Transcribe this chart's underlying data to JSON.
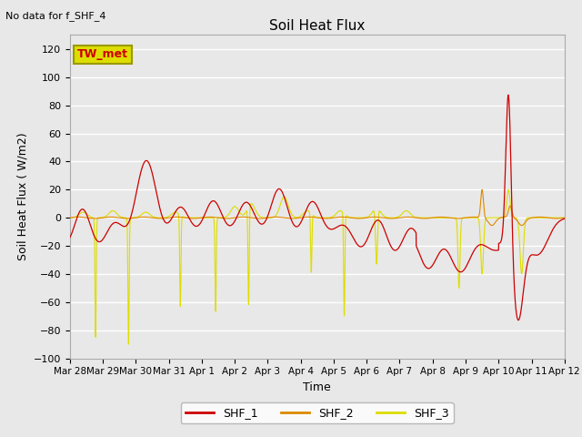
{
  "title": "Soil Heat Flux",
  "subtitle": "No data for f_SHF_4",
  "xlabel": "Time",
  "ylabel": "Soil Heat Flux ( W/m2)",
  "ylim": [
    -100,
    130
  ],
  "yticks": [
    -100,
    -80,
    -60,
    -40,
    -20,
    0,
    20,
    40,
    60,
    80,
    100,
    120
  ],
  "xtick_labels": [
    "Mar 28",
    "Mar 29",
    "Mar 30",
    "Mar 31",
    "Apr 1",
    "Apr 2",
    "Apr 3",
    "Apr 4",
    "Apr 5",
    "Apr 6",
    "Apr 7",
    "Apr 8",
    "Apr 9",
    "Apr 10",
    "Apr 11",
    "Apr 12"
  ],
  "legend_labels": [
    "SHF_1",
    "SHF_2",
    "SHF_3"
  ],
  "legend_colors": [
    "#cc0000",
    "#dd8800",
    "#dddd00"
  ],
  "line_colors": {
    "SHF_1": "#cc0000",
    "SHF_2": "#dd8800",
    "SHF_3": "#dddd00"
  },
  "annotation_box": "TW_met",
  "annotation_box_facecolor": "#dddd00",
  "annotation_text_color": "#cc0000",
  "bg_color": "#e8e8e8",
  "grid_color": "#ffffff"
}
